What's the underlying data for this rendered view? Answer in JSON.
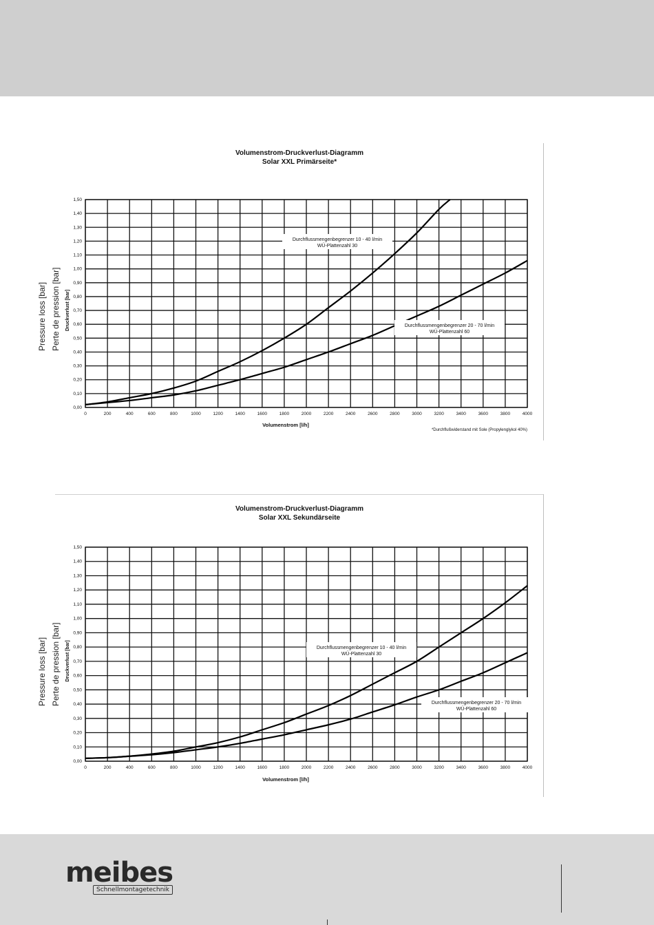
{
  "page": {
    "outer_ylabel_en": "Pressure loss [bar]",
    "outer_ylabel_fr": "Perte de pression [bar]",
    "logo_word": "meibes",
    "logo_tagline": "Schnellmontagetechnik"
  },
  "chart_data": [
    {
      "type": "line",
      "title": "Volumenstrom-Druckverlust-Diagramm",
      "subtitle": "Solar XXL Primärseite*",
      "xlabel": "Volumenstrom [l/h]",
      "ylabel": "Druckverlust [bar]",
      "xlim": [
        0,
        4000
      ],
      "ylim": [
        0,
        1.5
      ],
      "x_ticks": [
        "0",
        "200",
        "400",
        "600",
        "800",
        "1000",
        "1200",
        "1400",
        "1600",
        "1800",
        "2000",
        "2200",
        "2400",
        "2600",
        "2800",
        "3000",
        "3200",
        "3400",
        "3600",
        "3800",
        "4000"
      ],
      "y_ticks": [
        "0,00",
        "0,10",
        "0,20",
        "0,30",
        "0,40",
        "0,50",
        "0,60",
        "0,70",
        "0,80",
        "0,90",
        "1,00",
        "1,10",
        "1,20",
        "1,30",
        "1,40",
        "1,50"
      ],
      "grid": true,
      "footnote": "*Durchflußwiderstand mit Sole (Propylenglykol 40%)",
      "series": [
        {
          "name": "Durchflussmengenbegrenzer 10 - 40 l/min",
          "label2": "WÜ-Plattenzahl 30",
          "x": [
            0,
            200,
            400,
            600,
            800,
            1000,
            1200,
            1400,
            1600,
            1800,
            2000,
            2200,
            2400,
            2600,
            2800,
            3000,
            3200,
            3300
          ],
          "y": [
            0.02,
            0.04,
            0.07,
            0.1,
            0.14,
            0.19,
            0.26,
            0.33,
            0.41,
            0.5,
            0.6,
            0.72,
            0.84,
            0.97,
            1.11,
            1.26,
            1.43,
            1.5
          ]
        },
        {
          "name": "Durchflussmengenbegrenzer 20 - 70 l/min",
          "label2": "WÜ-Plattenzahl 60",
          "x": [
            0,
            200,
            400,
            600,
            800,
            1000,
            1200,
            1400,
            1600,
            1800,
            2000,
            2200,
            2400,
            2600,
            2800,
            3000,
            3200,
            3400,
            3600,
            3800,
            4000
          ],
          "y": [
            0.02,
            0.035,
            0.05,
            0.07,
            0.09,
            0.12,
            0.16,
            0.2,
            0.245,
            0.29,
            0.345,
            0.4,
            0.46,
            0.52,
            0.59,
            0.66,
            0.73,
            0.81,
            0.89,
            0.97,
            1.06
          ]
        }
      ]
    },
    {
      "type": "line",
      "title": "Volumenstrom-Druckverlust-Diagramm",
      "subtitle": "Solar XXL Sekundärseite",
      "xlabel": "Volumenstrom [l/h]",
      "ylabel": "Druckverlust [bar]",
      "xlim": [
        0,
        4000
      ],
      "ylim": [
        0,
        1.5
      ],
      "x_ticks": [
        "0",
        "200",
        "400",
        "600",
        "800",
        "1000",
        "1200",
        "1400",
        "1600",
        "1800",
        "2000",
        "2200",
        "2400",
        "2600",
        "2800",
        "3000",
        "3200",
        "3400",
        "3600",
        "3800",
        "4000"
      ],
      "y_ticks": [
        "0,00",
        "0,10",
        "0,20",
        "0,30",
        "0,40",
        "0,50",
        "0,60",
        "0,70",
        "0,80",
        "0,90",
        "1,00",
        "1,10",
        "1,20",
        "1,30",
        "1,40",
        "1,50"
      ],
      "grid": true,
      "series": [
        {
          "name": "Durchflussmengenbegrenzer 10 - 40 l/min",
          "label2": "WÜ-Plattenzahl 30",
          "x": [
            0,
            200,
            400,
            600,
            800,
            1000,
            1200,
            1400,
            1600,
            1800,
            2000,
            2200,
            2400,
            2600,
            2800,
            3000,
            3200,
            3400,
            3600,
            3800,
            4000
          ],
          "y": [
            0.02,
            0.025,
            0.035,
            0.05,
            0.07,
            0.1,
            0.13,
            0.17,
            0.22,
            0.27,
            0.33,
            0.39,
            0.46,
            0.54,
            0.62,
            0.7,
            0.8,
            0.9,
            1.0,
            1.11,
            1.23
          ]
        },
        {
          "name": "Durchflussmengenbegrenzer 20 - 70 l/min",
          "label2": "WÜ-Plattenzahl 60",
          "x": [
            0,
            200,
            400,
            600,
            800,
            1000,
            1200,
            1400,
            1600,
            1800,
            2000,
            2200,
            2400,
            2600,
            2800,
            3000,
            3200,
            3400,
            3600,
            3800,
            4000
          ],
          "y": [
            0.02,
            0.025,
            0.035,
            0.045,
            0.06,
            0.08,
            0.1,
            0.125,
            0.155,
            0.185,
            0.22,
            0.255,
            0.295,
            0.345,
            0.395,
            0.45,
            0.5,
            0.56,
            0.62,
            0.69,
            0.76
          ]
        }
      ]
    }
  ]
}
